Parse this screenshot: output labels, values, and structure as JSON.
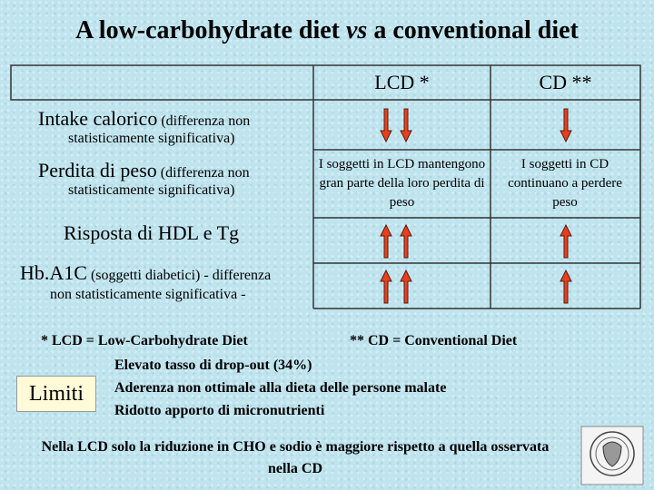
{
  "header": {
    "title_parts": [
      "A low-carbohydrate diet ",
      "vs",
      " a conventional diet"
    ]
  },
  "table": {
    "columns": [
      "LCD *",
      "CD **"
    ],
    "rows": [
      {
        "label": "Intake calorico",
        "note": "(differenza non",
        "note2": "statisticamente significativa)",
        "lcd": "",
        "cd": ""
      },
      {
        "label": "Perdita di peso",
        "note": "(differenza non",
        "note2": "statisticamente significativa)",
        "lcd": "I soggetti in LCD mantengono gran parte della loro perdita di peso",
        "cd": "I soggetti in CD continuano a perdere peso"
      },
      {
        "label": "Risposta di HDL e Tg",
        "note": "",
        "note2": "",
        "lcd": "",
        "cd": ""
      },
      {
        "label": "Hb.A1C",
        "note": "(soggetti diabetici) - differenza",
        "note2": "non statisticamente significativa -",
        "lcd": "",
        "cd": ""
      }
    ]
  },
  "footnotes": [
    "* LCD = Low-Carbohydrate Diet",
    "** CD = Conventional Diet"
  ],
  "limits": {
    "label": "Limiti",
    "items": [
      "Elevato tasso di drop-out (34%)",
      "Aderenza non ottimale alla dieta delle persone malate",
      "Ridotto apporto di micronutrienti"
    ]
  },
  "conclusion": "Nella LCD solo la riduzione in CHO e sodio è maggiore rispetto a quella osservata nella CD"
}
